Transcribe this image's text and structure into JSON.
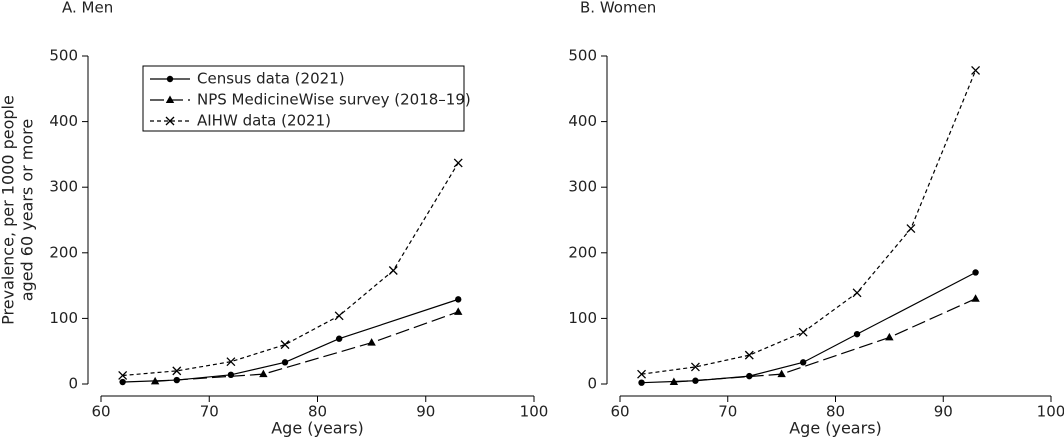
{
  "chart_data": [
    {
      "type": "line",
      "title": "A. Men",
      "xlabel": "Age (years)",
      "ylabel": [
        "Prevalence, per 1000 people",
        "aged 60 years or more"
      ],
      "xlim": [
        60,
        100
      ],
      "xticks": [
        60,
        70,
        80,
        90,
        100
      ],
      "ylim": [
        0,
        500
      ],
      "yticks": [
        0,
        100,
        200,
        300,
        400,
        500
      ],
      "legend": "upper left",
      "series": [
        {
          "name": "Census data (2021)",
          "color": "#000000",
          "marker": "circle",
          "dash": "solid",
          "x": [
            62,
            67,
            72,
            77,
            82,
            93
          ],
          "values": [
            3,
            6,
            14,
            33,
            69,
            129
          ]
        },
        {
          "name": "NPS MedicineWise survey (2018–19)",
          "color": "#000000",
          "marker": "triangle",
          "dash": "longdash",
          "x": [
            65,
            75,
            85,
            93
          ],
          "values": [
            4,
            15,
            63,
            110
          ]
        },
        {
          "name": "AIHW data (2021)",
          "color": "#000000",
          "marker": "x",
          "dash": "dotted",
          "x": [
            62,
            67,
            72,
            77,
            82,
            87,
            93
          ],
          "values": [
            13,
            20,
            34,
            60,
            104,
            173,
            337
          ]
        }
      ]
    },
    {
      "type": "line",
      "title": "B. Women",
      "xlabel": "Age (years)",
      "xlim": [
        60,
        100
      ],
      "xticks": [
        60,
        70,
        80,
        90,
        100
      ],
      "ylim": [
        0,
        500
      ],
      "yticks": [
        0,
        100,
        200,
        300,
        400,
        500
      ],
      "series": [
        {
          "color": "#000000",
          "marker": "circle",
          "dash": "solid",
          "x": [
            62,
            67,
            72,
            77,
            82,
            93
          ],
          "values": [
            2,
            5,
            12,
            33,
            76,
            170
          ]
        },
        {
          "color": "#000000",
          "marker": "triangle",
          "dash": "longdash",
          "x": [
            65,
            75,
            85,
            93
          ],
          "values": [
            3,
            15,
            71,
            130
          ]
        },
        {
          "color": "#000000",
          "marker": "x",
          "dash": "dotted",
          "x": [
            62,
            67,
            72,
            77,
            82,
            87,
            93
          ],
          "values": [
            15,
            26,
            44,
            79,
            139,
            237,
            478
          ]
        }
      ]
    }
  ]
}
